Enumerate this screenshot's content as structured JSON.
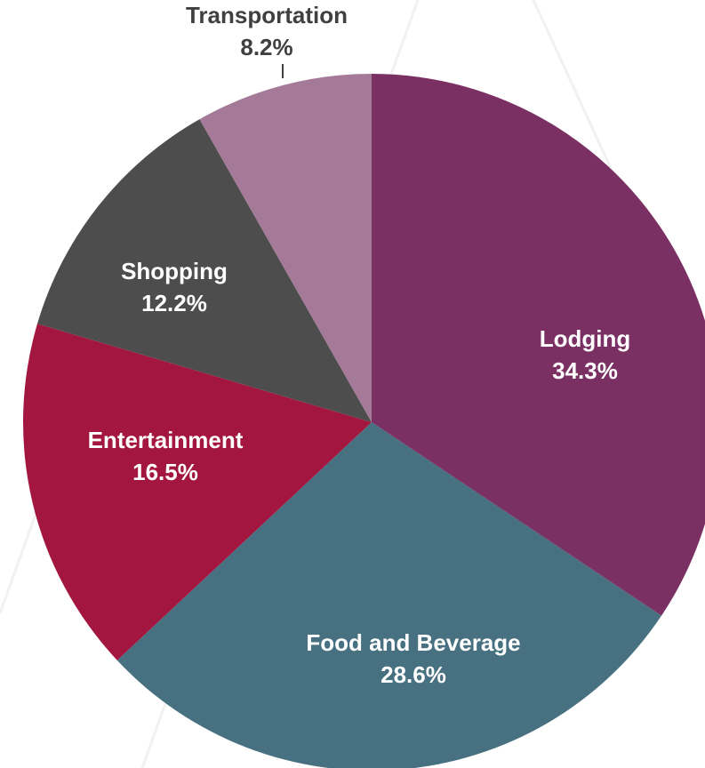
{
  "chart_data": {
    "type": "pie",
    "title": "",
    "slices": [
      {
        "label": "Lodging",
        "value": 34.3,
        "value_label": "34.3%",
        "color": "#7b3064",
        "label_color": "#ffffff",
        "label_position": "inside"
      },
      {
        "label": "Food and Beverage",
        "value": 28.6,
        "value_label": "28.6%",
        "color": "#477080",
        "label_color": "#ffffff",
        "label_position": "inside"
      },
      {
        "label": "Entertainment",
        "value": 16.5,
        "value_label": "16.5%",
        "color": "#a3163f",
        "label_color": "#ffffff",
        "label_position": "inside"
      },
      {
        "label": "Shopping",
        "value": 12.2,
        "value_label": "12.2%",
        "color": "#4d4d4d",
        "label_color": "#ffffff",
        "label_position": "inside"
      },
      {
        "label": "Transportation",
        "value": 8.2,
        "value_label": "8.2%",
        "color": "#a57a98",
        "label_color": "#404040",
        "label_position": "outside"
      }
    ],
    "start_angle": "12 o'clock",
    "direction": "clockwise",
    "legend": "none"
  }
}
